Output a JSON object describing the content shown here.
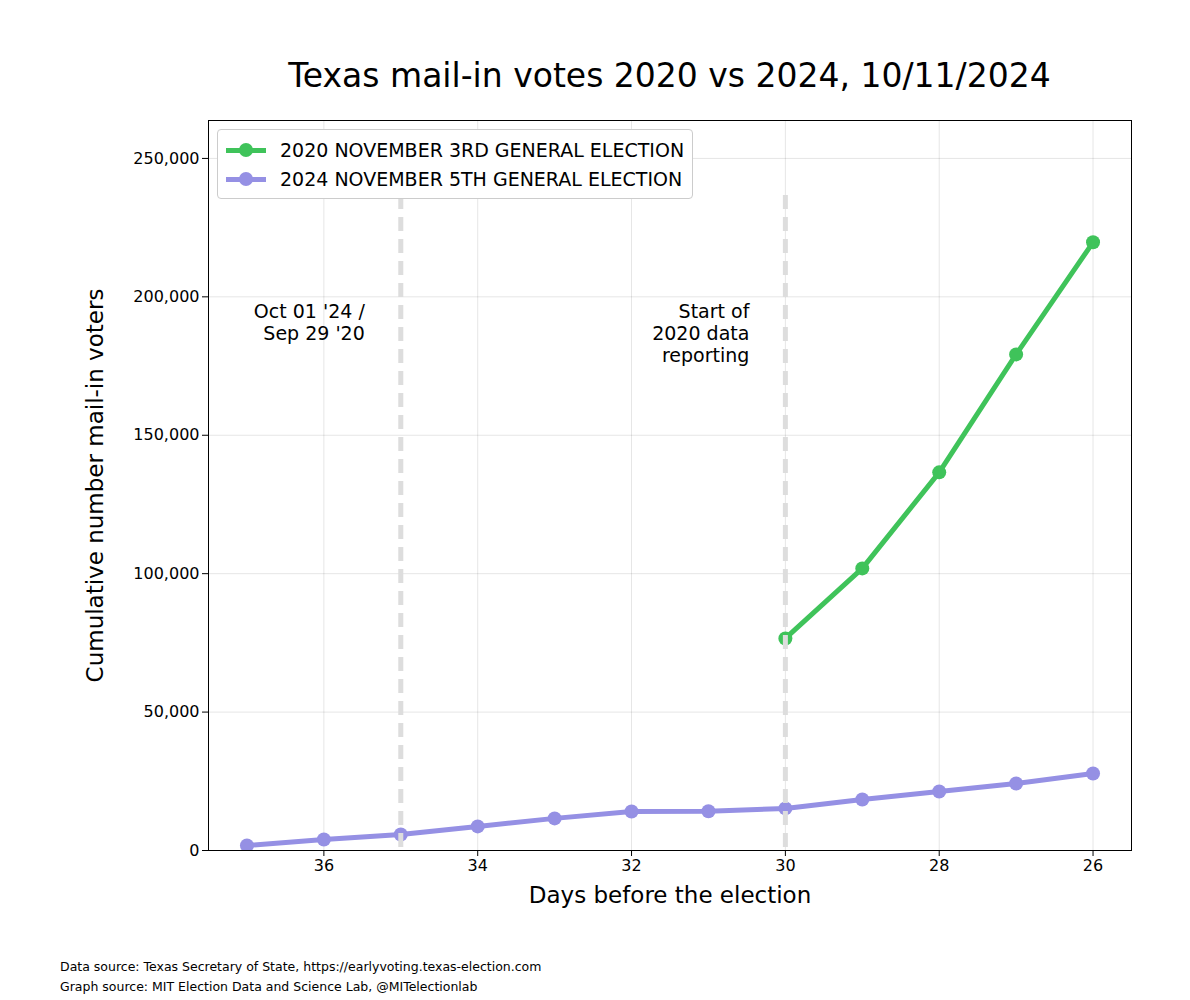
{
  "chart_data": {
    "type": "line",
    "title": "Texas mail-in votes 2020 vs 2024, 10/11/2024",
    "xlabel": "Days before the election",
    "ylabel": "Cumulative number mail-in voters",
    "x": [
      37,
      36,
      35,
      34,
      33,
      32,
      31,
      30,
      29,
      28,
      27,
      26
    ],
    "series": [
      {
        "name": "2020 NOVEMBER 3RD GENERAL ELECTION",
        "color": "#3fc35a",
        "marker": "circle",
        "line_style": "solid",
        "values": [
          null,
          null,
          null,
          null,
          null,
          null,
          null,
          76600,
          101900,
          136600,
          179200,
          219700
        ]
      },
      {
        "name": "2024 NOVEMBER 5TH GENERAL ELECTION",
        "color": "#9590e4",
        "marker": "circle",
        "line_style": "solid",
        "values": [
          1800,
          4000,
          5800,
          8700,
          11600,
          14100,
          14200,
          15200,
          18400,
          21300,
          24200,
          27800
        ]
      }
    ],
    "xlim": [
      37.5,
      25.5
    ],
    "xticks": [
      36,
      34,
      32,
      30,
      28,
      26
    ],
    "ylim": [
      0,
      263700
    ],
    "yticks": [
      0,
      {
        "value": 50000,
        "label": "50,000"
      },
      {
        "value": 100000,
        "label": "100,000"
      },
      {
        "value": 150000,
        "label": "150,000"
      },
      {
        "value": 200000,
        "label": "200,000"
      },
      {
        "value": 250000,
        "label": "250,000"
      }
    ],
    "grid": true,
    "legend": "upper left",
    "annotations": [
      {
        "text": "Oct 01 '24 /\nSep 29 '20",
        "x": 35,
        "line_style": "dashed"
      },
      {
        "text": "Start of\n2020 data\nreporting",
        "x": 30,
        "line_style": "dashed"
      }
    ],
    "caption": [
      "Data source: Texas Secretary of State, https://earlyvoting.texas-election.com",
      "Graph source: MIT Election Data and Science Lab, @MITelectionlab"
    ]
  }
}
